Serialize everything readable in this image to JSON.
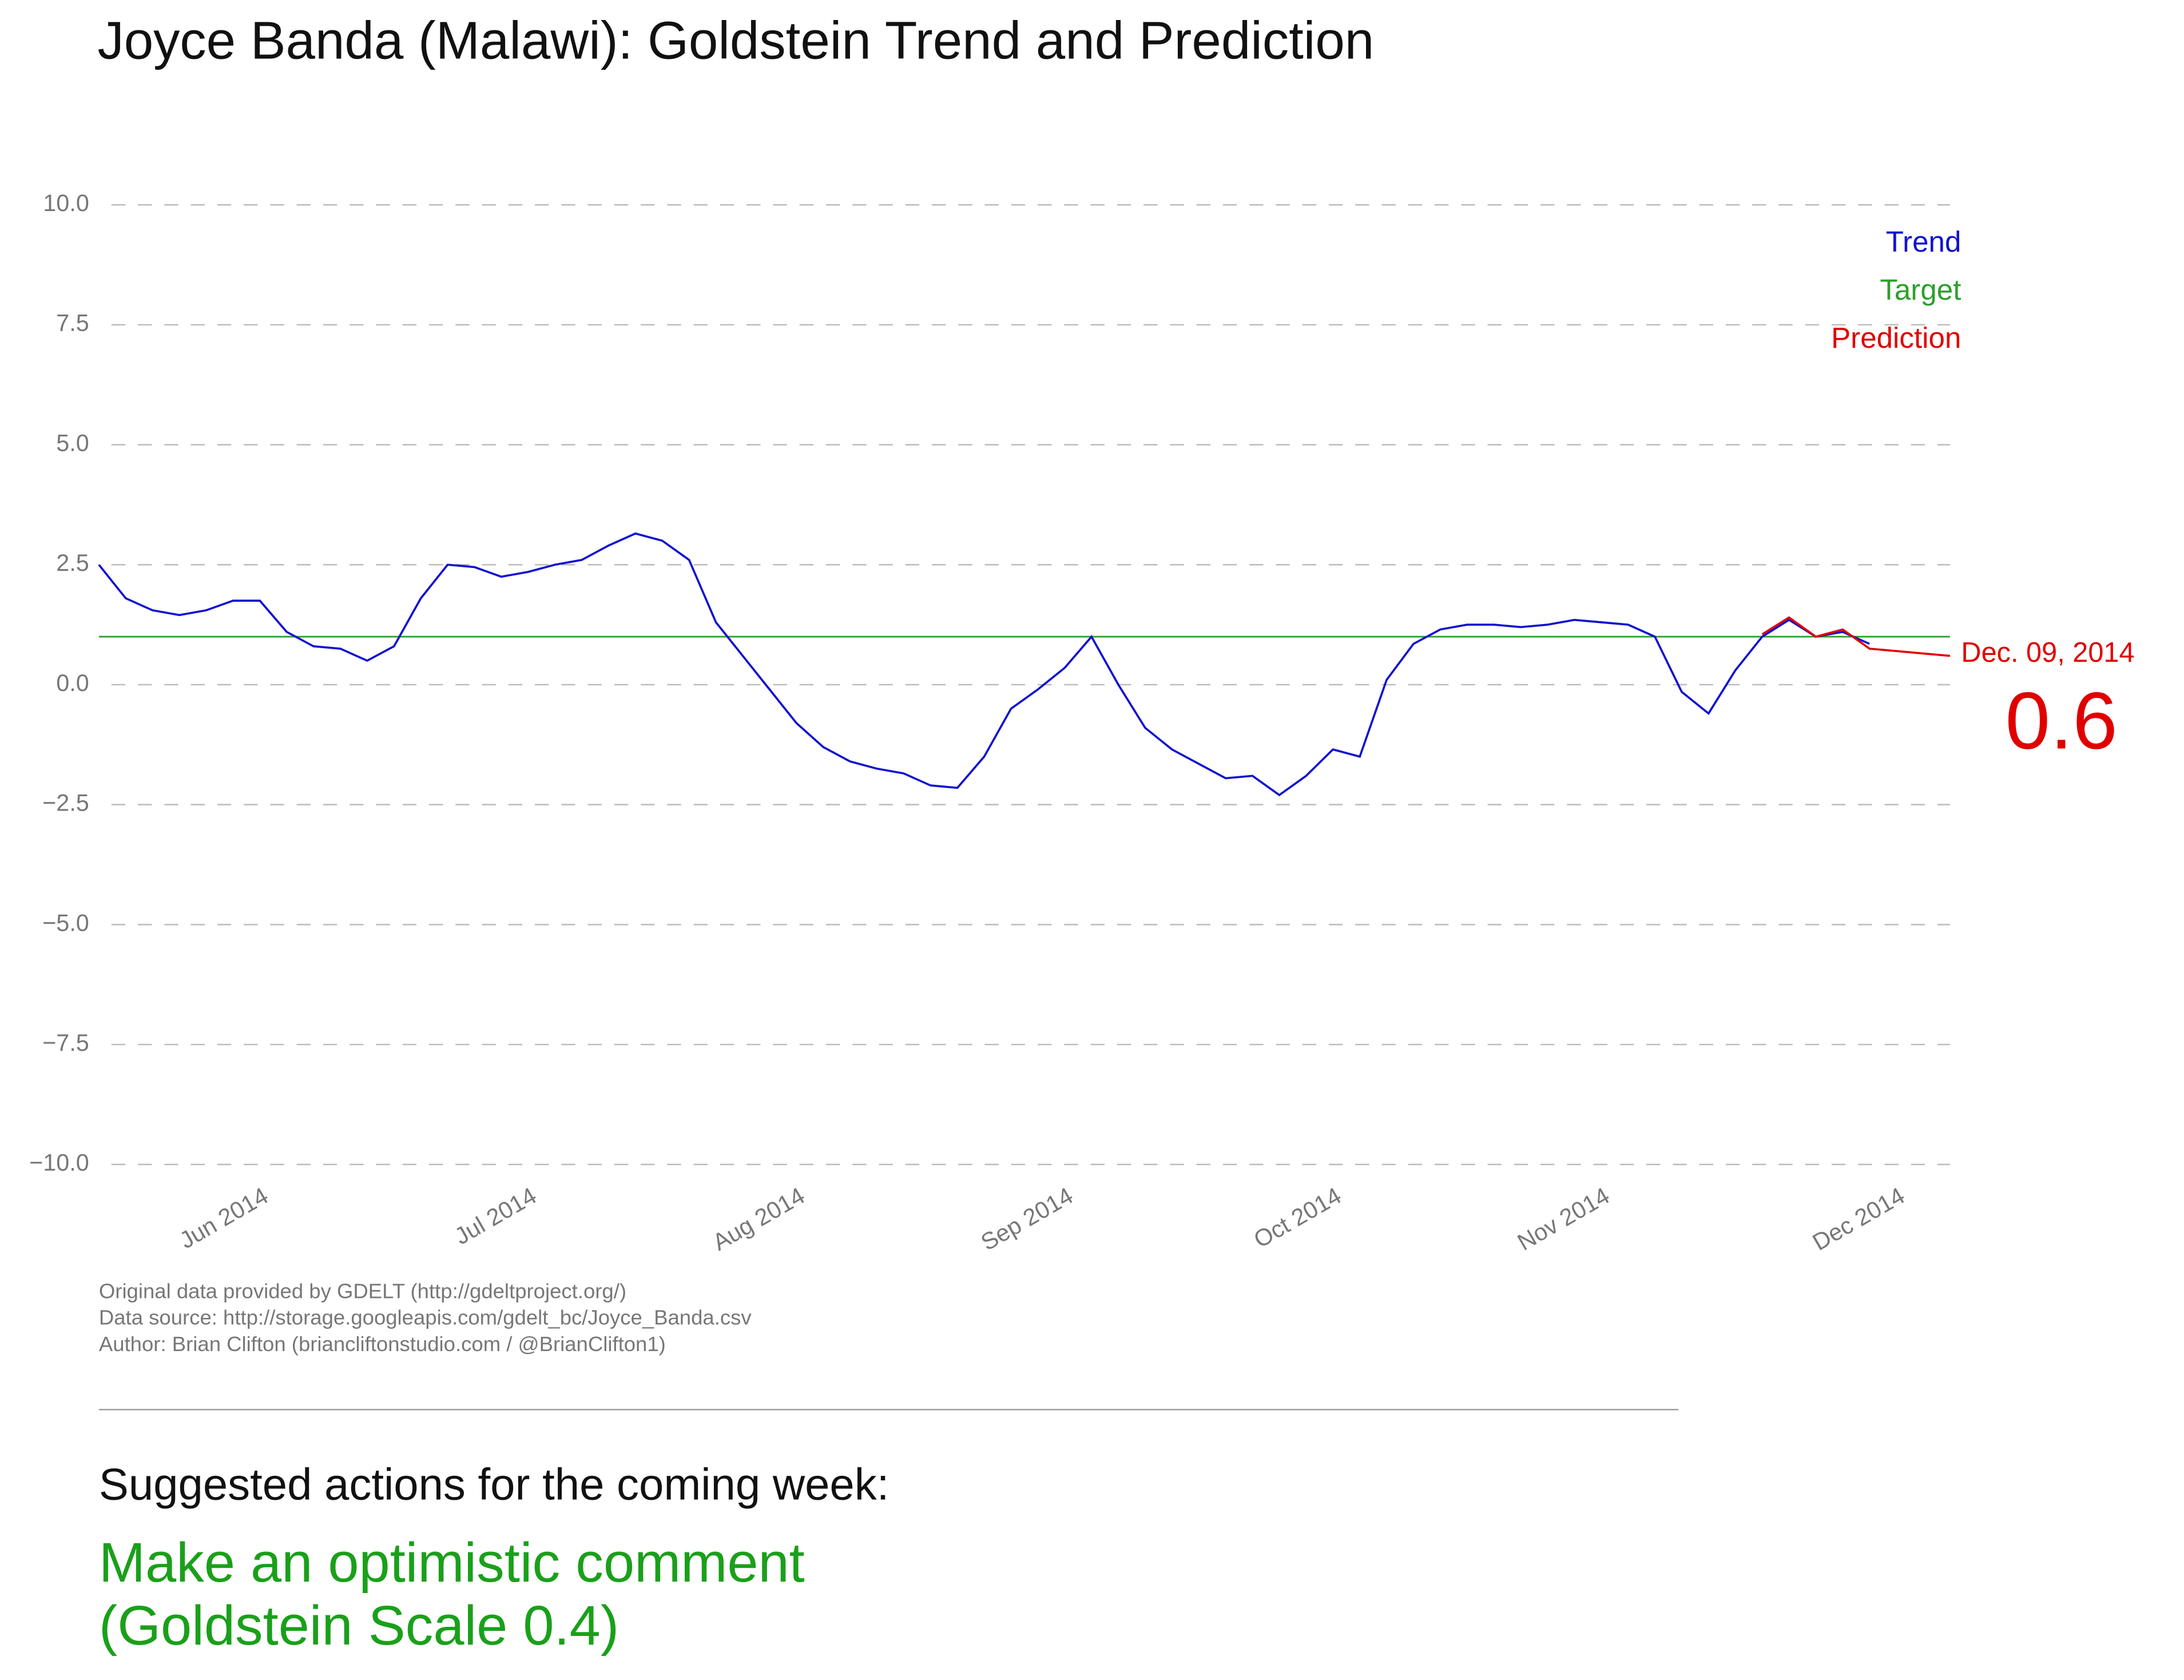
{
  "chart_data": {
    "type": "line",
    "title": "Joyce Banda (Malawi): Goldstein Trend and Prediction",
    "categories": [
      null,
      null,
      null,
      null,
      null,
      null,
      "Jun 2014",
      null,
      null,
      null,
      null,
      null,
      null,
      null,
      null,
      null,
      "Jul 2014",
      null,
      null,
      null,
      null,
      null,
      null,
      null,
      null,
      null,
      "Aug 2014",
      null,
      null,
      null,
      null,
      null,
      null,
      null,
      null,
      null,
      "Sep 2014",
      null,
      null,
      null,
      null,
      null,
      null,
      null,
      null,
      null,
      "Oct 2014",
      null,
      null,
      null,
      null,
      null,
      null,
      null,
      null,
      null,
      "Nov 2014",
      null,
      null,
      null,
      null,
      null,
      null,
      null,
      null,
      null,
      null,
      "Dec 2014",
      null,
      null
    ],
    "series": [
      {
        "name": "Trend",
        "color": "#1010d0",
        "values": [
          2.5,
          1.8,
          1.55,
          1.45,
          1.55,
          1.75,
          1.75,
          1.1,
          0.8,
          0.75,
          0.5,
          0.8,
          1.8,
          2.5,
          2.45,
          2.25,
          2.35,
          2.5,
          2.6,
          2.9,
          3.15,
          3.0,
          2.6,
          1.3,
          0.6,
          -0.1,
          -0.8,
          -1.3,
          -1.6,
          -1.75,
          -1.85,
          -2.1,
          -2.15,
          -1.5,
          -0.5,
          -0.1,
          0.35,
          1.0,
          0.0,
          -0.9,
          -1.35,
          -1.65,
          -1.95,
          -1.9,
          -2.3,
          -1.9,
          -1.35,
          -1.5,
          0.1,
          0.85,
          1.15,
          1.25,
          1.25,
          1.2,
          1.25,
          1.35,
          1.3,
          1.25,
          1.0,
          -0.15,
          -0.6,
          0.3,
          1.0,
          1.35,
          1.0,
          1.1,
          0.85,
          null,
          null,
          null
        ]
      },
      {
        "name": "Prediction",
        "color": "#e00000",
        "values": [
          null,
          null,
          null,
          null,
          null,
          null,
          null,
          null,
          null,
          null,
          null,
          null,
          null,
          null,
          null,
          null,
          null,
          null,
          null,
          null,
          null,
          null,
          null,
          null,
          null,
          null,
          null,
          null,
          null,
          null,
          null,
          null,
          null,
          null,
          null,
          null,
          null,
          null,
          null,
          null,
          null,
          null,
          null,
          null,
          null,
          null,
          null,
          null,
          null,
          null,
          null,
          null,
          null,
          null,
          null,
          null,
          null,
          null,
          null,
          null,
          null,
          null,
          1.05,
          1.4,
          1.0,
          1.15,
          0.75,
          0.7,
          0.65,
          0.6
        ]
      }
    ],
    "reference_line": {
      "name": "Target",
      "color": "#2ca02c",
      "value": 1.0
    },
    "ylim": [
      -10,
      10
    ],
    "yticks": [
      {
        "value": -10,
        "label": "−10.0"
      },
      {
        "value": -7.5,
        "label": "−7.5"
      },
      {
        "value": -5,
        "label": "−5.0"
      },
      {
        "value": -2.5,
        "label": "−2.5"
      },
      {
        "value": 0,
        "label": "0.0"
      },
      {
        "value": 2.5,
        "label": "2.5"
      },
      {
        "value": 5,
        "label": "5.0"
      },
      {
        "value": 7.5,
        "label": "7.5"
      },
      {
        "value": 10,
        "label": "10.0"
      }
    ],
    "grid": true,
    "legend": "upper right",
    "annotation": "Dec. 09, 2014"
  },
  "notes": [
    "Original data provided by GDELT (http://gdeltproject.org/)",
    "Data source: http://storage.googleapis.com/gdelt_bc/Joyce_Banda.csv",
    "Author: Brian Clifton (briancliftonstudio.com / @BrianClifton1)"
  ],
  "actions": {
    "heading": "Suggested actions for the coming week:",
    "lines": [
      "Make an optimistic comment",
      "(Goldstein Scale 0.4)"
    ]
  }
}
